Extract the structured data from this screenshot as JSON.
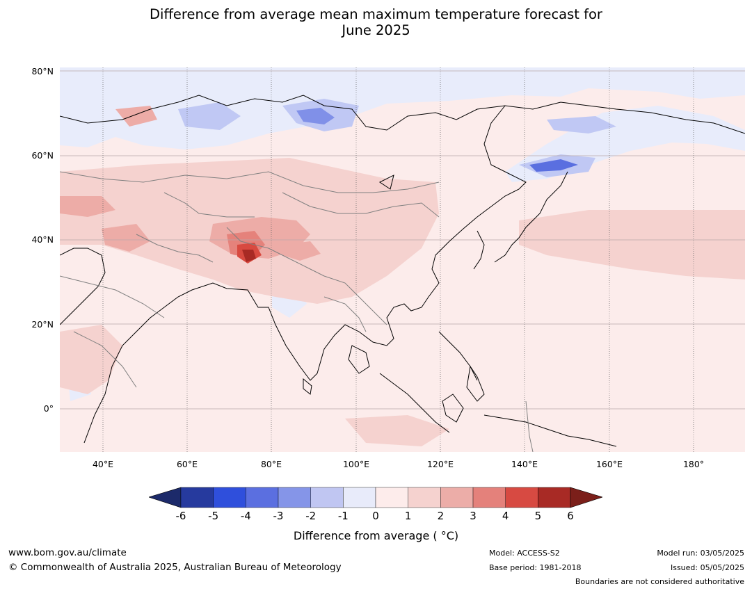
{
  "title": {
    "line1": "Difference from average mean maximum temperature forecast for",
    "line2": "June 2025"
  },
  "map": {
    "lat_labels": [
      "80°N",
      "60°N",
      "40°N",
      "20°N",
      "0°"
    ],
    "lon_labels": [
      "40°E",
      "60°E",
      "80°E",
      "100°E",
      "120°E",
      "140°E",
      "160°E",
      "180°"
    ],
    "colors": {
      "ocean_base": "#fceceb",
      "cool_1": "#e8ecfb",
      "cool_2": "#c0c8f4",
      "cool_3": "#8090e8",
      "cool_4": "#5a6fe0",
      "warm_1": "#f5d2cf",
      "warm_2": "#edaca7",
      "warm_3": "#e5827b",
      "warm_4": "#d84a40",
      "warm_5": "#a82a24"
    }
  },
  "colorbar": {
    "ticks": [
      "-6",
      "-5",
      "-4",
      "-3",
      "-2",
      "-1",
      "0",
      "1",
      "2",
      "3",
      "4",
      "5",
      "6"
    ],
    "colors": [
      "#263a9e",
      "#2f4fdc",
      "#5b6fe0",
      "#8595e8",
      "#c0c6f2",
      "#e8ebfa",
      "#fdeceb",
      "#f5d2cf",
      "#ecada8",
      "#e4817b",
      "#d74a42",
      "#a82a25"
    ],
    "under_color": "#1c2a6a",
    "over_color": "#7b1f1a",
    "label": "Difference from average ( °C)"
  },
  "footer": {
    "website": "www.bom.gov.au/climate",
    "copyright": "© Commonwealth of Australia 2025, Australian Bureau of Meteorology",
    "model": "Model: ACCESS-S2",
    "base_period": "Base period: 1981-2018",
    "model_run": "Model run: 03/05/2025",
    "issued": "Issued: 05/05/2025",
    "disclaimer": "Boundaries are not considered authoritative"
  }
}
